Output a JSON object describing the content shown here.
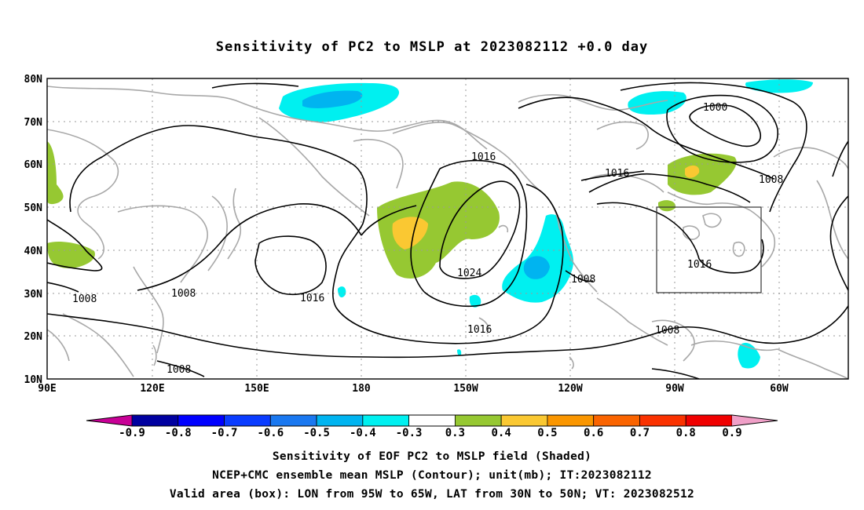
{
  "title": "Sensitivity of PC2 to MSLP at 2023082112 +0.0 day",
  "map": {
    "lat_labels": [
      "80N",
      "70N",
      "60N",
      "50N",
      "40N",
      "30N",
      "20N",
      "10N"
    ],
    "lon_labels": [
      "90E",
      "120E",
      "150E",
      "180",
      "150W",
      "120W",
      "90W",
      "60W"
    ],
    "contour_labels": [
      "1016",
      "1000",
      "1016",
      "1008",
      "1024",
      "1016",
      "1016",
      "1008",
      "1008",
      "1008",
      "1016",
      "1008",
      "1008"
    ],
    "valid_box": {
      "lon_min": -95,
      "lon_max": -65,
      "lat_min": 30,
      "lat_max": 50
    }
  },
  "colorbar": {
    "labels": [
      "-0.9",
      "-0.8",
      "-0.7",
      "-0.6",
      "-0.5",
      "-0.4",
      "-0.3",
      "0.3",
      "0.4",
      "0.5",
      "0.6",
      "0.7",
      "0.8",
      "0.9"
    ],
    "colors": [
      "#0000a0",
      "#0000ff",
      "#0a3cff",
      "#1a78f0",
      "#00b4f0",
      "#00f0f0",
      "#ffffff",
      "#96c832",
      "#fac832",
      "#fa9600",
      "#fa6400",
      "#fa3200",
      "#f00000"
    ],
    "low_tip_color": "#c80096",
    "high_tip_color": "#f0a0c8"
  },
  "captions": [
    "Sensitivity of EOF PC2 to MSLP field (Shaded)",
    "NCEP+CMC ensemble mean MSLP (Contour); unit(mb); IT:2023082112",
    "Valid area (box): LON from 95W to 65W, LAT from 30N to 50N; VT: 2023082512"
  ]
}
